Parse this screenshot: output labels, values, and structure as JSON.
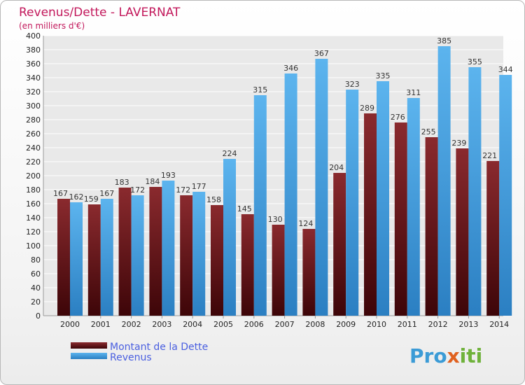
{
  "chart_data": {
    "type": "bar",
    "title": "Revenus/Dette - LAVERNAT",
    "subtitle": "(en milliers d'€)",
    "categories": [
      "2000",
      "2001",
      "2002",
      "2003",
      "2004",
      "2005",
      "2006",
      "2007",
      "2008",
      "2009",
      "2010",
      "2011",
      "2012",
      "2013",
      "2014"
    ],
    "series": [
      {
        "name": "Montant de la Dette",
        "color": "#7a1f23",
        "values": [
          167,
          159,
          183,
          184,
          172,
          158,
          145,
          130,
          124,
          204,
          289,
          276,
          255,
          239,
          221
        ]
      },
      {
        "name": "Revenus",
        "color": "#4aa3e0",
        "values": [
          162,
          167,
          172,
          193,
          177,
          224,
          315,
          346,
          367,
          323,
          335,
          311,
          385,
          355,
          344
        ]
      }
    ],
    "ylim": [
      0,
      400
    ],
    "ytick_step": 20,
    "grid": true,
    "legend_position": "bottom-left"
  },
  "logo": {
    "text": "Proxiti"
  }
}
